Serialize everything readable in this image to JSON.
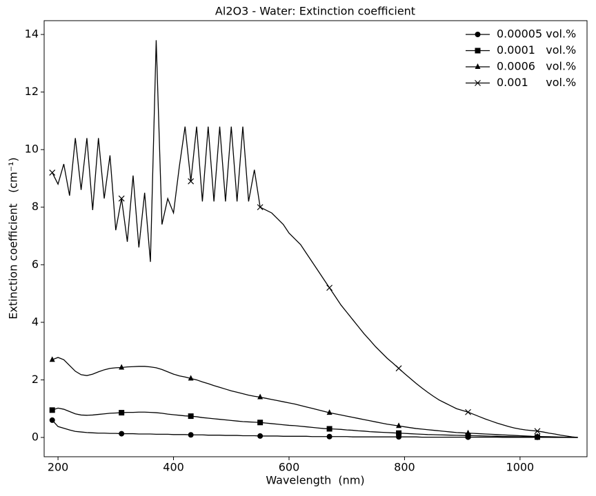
{
  "chart_data": {
    "type": "line",
    "title": "Al2O3 - Water: Extinction coefficient",
    "x_label": "Wavelength  (nm)",
    "y_label": "Extinction coefficient   (cm⁻¹)",
    "xlim": [
      176,
      1116
    ],
    "ylim": [
      -0.67,
      14.48
    ],
    "xticks": [
      200,
      400,
      600,
      800,
      1000
    ],
    "yticks": [
      0,
      2,
      4,
      6,
      8,
      10,
      12,
      14
    ],
    "legend": "upper right",
    "markevery": 12,
    "x": [
      190,
      200,
      210,
      220,
      230,
      240,
      250,
      260,
      270,
      280,
      290,
      300,
      310,
      320,
      330,
      340,
      350,
      360,
      370,
      380,
      390,
      400,
      410,
      420,
      430,
      440,
      450,
      460,
      470,
      480,
      490,
      500,
      510,
      520,
      530,
      540,
      550,
      560,
      570,
      580,
      590,
      600,
      610,
      620,
      630,
      640,
      650,
      660,
      670,
      680,
      690,
      700,
      710,
      720,
      730,
      740,
      750,
      760,
      770,
      780,
      790,
      800,
      810,
      820,
      830,
      840,
      850,
      860,
      870,
      880,
      890,
      900,
      910,
      920,
      930,
      940,
      950,
      960,
      970,
      980,
      990,
      1000,
      1010,
      1020,
      1030,
      1040,
      1050,
      1060,
      1070,
      1080,
      1090,
      1100
    ],
    "series": [
      {
        "name": "0.00005 vol.%",
        "color": "#000000",
        "marker": "circle",
        "values": [
          0.6,
          0.38,
          0.32,
          0.26,
          0.21,
          0.19,
          0.17,
          0.16,
          0.15,
          0.15,
          0.14,
          0.14,
          0.13,
          0.13,
          0.13,
          0.12,
          0.12,
          0.12,
          0.11,
          0.11,
          0.11,
          0.1,
          0.1,
          0.1,
          0.09,
          0.09,
          0.09,
          0.08,
          0.08,
          0.08,
          0.07,
          0.07,
          0.07,
          0.06,
          0.06,
          0.06,
          0.05,
          0.05,
          0.05,
          0.05,
          0.04,
          0.04,
          0.04,
          0.04,
          0.04,
          0.03,
          0.03,
          0.03,
          0.03,
          0.03,
          0.03,
          0.03,
          0.02,
          0.02,
          0.02,
          0.02,
          0.02,
          0.02,
          0.02,
          0.02,
          0.02,
          0.02,
          0.02,
          0.02,
          0.01,
          0.01,
          0.01,
          0.01,
          0.01,
          0.01,
          0.01,
          0.01,
          0.01,
          0.01,
          0.01,
          0.01,
          0.01,
          0.01,
          0.005,
          0.005,
          0.005,
          0.005,
          0.005,
          0.005,
          0.005,
          0.004,
          0.003,
          0.002,
          0.002,
          0.001,
          0.001,
          0
        ]
      },
      {
        "name": "0.0001   vol.%",
        "color": "#000000",
        "marker": "square",
        "values": [
          0.95,
          1.02,
          0.98,
          0.9,
          0.82,
          0.78,
          0.77,
          0.78,
          0.8,
          0.82,
          0.84,
          0.85,
          0.86,
          0.87,
          0.87,
          0.88,
          0.88,
          0.87,
          0.86,
          0.84,
          0.81,
          0.79,
          0.77,
          0.75,
          0.74,
          0.72,
          0.69,
          0.67,
          0.65,
          0.63,
          0.61,
          0.59,
          0.57,
          0.55,
          0.54,
          0.53,
          0.52,
          0.5,
          0.48,
          0.46,
          0.44,
          0.42,
          0.41,
          0.39,
          0.37,
          0.35,
          0.33,
          0.31,
          0.3,
          0.29,
          0.28,
          0.26,
          0.25,
          0.23,
          0.22,
          0.2,
          0.19,
          0.18,
          0.17,
          0.16,
          0.15,
          0.14,
          0.13,
          0.12,
          0.11,
          0.1,
          0.095,
          0.09,
          0.085,
          0.08,
          0.075,
          0.07,
          0.065,
          0.06,
          0.055,
          0.05,
          0.045,
          0.04,
          0.035,
          0.03,
          0.027,
          0.024,
          0.021,
          0.018,
          0.015,
          0.012,
          0.01,
          0.008,
          0.006,
          0.004,
          0.002,
          0
        ]
      },
      {
        "name": "0.0006   vol.%",
        "color": "#000000",
        "marker": "triangle",
        "values": [
          2.7,
          2.78,
          2.7,
          2.5,
          2.3,
          2.18,
          2.15,
          2.2,
          2.28,
          2.35,
          2.4,
          2.42,
          2.43,
          2.45,
          2.46,
          2.47,
          2.47,
          2.45,
          2.42,
          2.36,
          2.28,
          2.2,
          2.14,
          2.1,
          2.05,
          2.0,
          1.93,
          1.87,
          1.8,
          1.74,
          1.68,
          1.62,
          1.57,
          1.52,
          1.47,
          1.43,
          1.4,
          1.36,
          1.32,
          1.28,
          1.24,
          1.2,
          1.16,
          1.11,
          1.06,
          1.01,
          0.96,
          0.91,
          0.86,
          0.82,
          0.78,
          0.74,
          0.7,
          0.66,
          0.62,
          0.58,
          0.54,
          0.5,
          0.46,
          0.43,
          0.4,
          0.37,
          0.34,
          0.31,
          0.29,
          0.27,
          0.25,
          0.23,
          0.21,
          0.19,
          0.17,
          0.16,
          0.15,
          0.14,
          0.13,
          0.12,
          0.11,
          0.1,
          0.09,
          0.08,
          0.07,
          0.06,
          0.05,
          0.04,
          0.035,
          0.03,
          0.025,
          0.02,
          0.015,
          0.01,
          0.005,
          0
        ]
      },
      {
        "name": "0.001     vol.%",
        "color": "#000000",
        "marker": "x",
        "values": [
          9.2,
          8.8,
          9.5,
          8.4,
          10.4,
          8.6,
          10.4,
          7.9,
          10.4,
          8.3,
          9.8,
          7.2,
          8.3,
          6.8,
          9.1,
          6.6,
          8.5,
          6.1,
          13.8,
          7.4,
          8.3,
          7.8,
          9.4,
          10.8,
          8.9,
          10.8,
          8.2,
          10.8,
          8.2,
          10.8,
          8.2,
          10.8,
          8.2,
          10.8,
          8.2,
          9.3,
          8.0,
          7.9,
          7.8,
          7.6,
          7.4,
          7.1,
          6.9,
          6.7,
          6.4,
          6.1,
          5.8,
          5.5,
          5.2,
          4.9,
          4.6,
          4.35,
          4.1,
          3.85,
          3.6,
          3.38,
          3.15,
          2.95,
          2.75,
          2.58,
          2.4,
          2.22,
          2.05,
          1.88,
          1.72,
          1.57,
          1.43,
          1.3,
          1.2,
          1.1,
          1.0,
          0.94,
          0.88,
          0.8,
          0.72,
          0.64,
          0.57,
          0.5,
          0.44,
          0.38,
          0.33,
          0.29,
          0.26,
          0.24,
          0.22,
          0.19,
          0.15,
          0.12,
          0.08,
          0.05,
          0.02,
          0
        ]
      }
    ]
  }
}
